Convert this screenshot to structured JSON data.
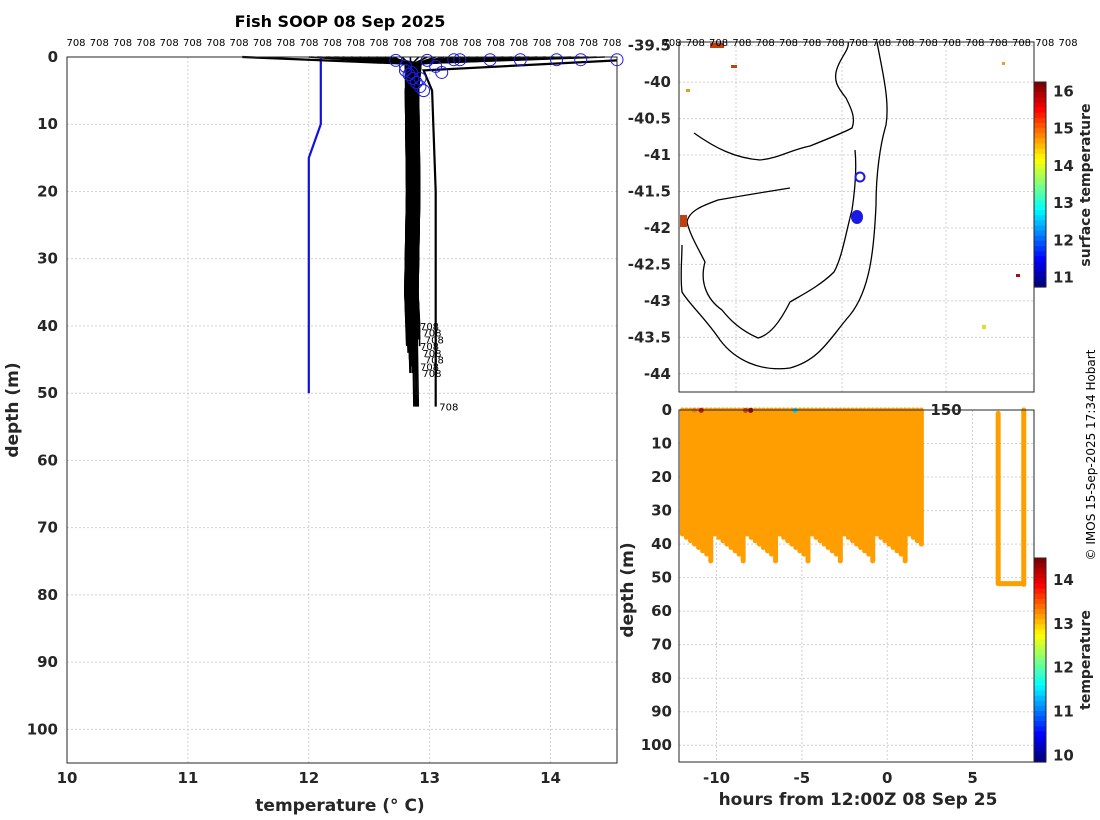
{
  "credit": "© IMOS 15-Sep-2025 17:34 Hobart",
  "chart_data": [
    {
      "type": "line",
      "title": "Fish SOOP 08 Sep 2025",
      "xlabel": "temperature (° C)",
      "ylabel": "depth (m)",
      "xlim": [
        10,
        14.55
      ],
      "ylim": [
        0,
        105
      ],
      "y_reversed": true,
      "grid": true,
      "xticks": [
        10,
        11,
        12,
        13,
        14
      ],
      "yticks": [
        0,
        10,
        20,
        30,
        40,
        50,
        60,
        70,
        80,
        90,
        100
      ],
      "top_label": "708",
      "series": [
        {
          "color": "#1010e0",
          "x": [
            12.1,
            12.1,
            12.1,
            12.0,
            12.0,
            12.0,
            12.0,
            12.0,
            12.0,
            12.0,
            12.0,
            12.0
          ],
          "y": [
            0,
            5,
            10,
            15,
            20,
            25,
            30,
            35,
            40,
            42,
            45,
            50
          ]
        },
        {
          "color": "#000000",
          "x": [
            11.45,
            12.8,
            12.81,
            12.82,
            12.83,
            12.84
          ],
          "y": [
            0,
            1,
            10,
            25,
            40,
            47
          ]
        },
        {
          "color": "#000000",
          "x": [
            14.55,
            12.95,
            13.02,
            13.05,
            13.05,
            13.05
          ],
          "y": [
            0.5,
            2,
            5,
            20,
            40,
            52
          ]
        }
      ],
      "profile_end_depths": [
        40,
        41,
        42,
        43,
        44,
        45,
        46,
        47,
        52
      ],
      "surface_marker_temps": [
        12.72,
        12.8,
        12.85,
        12.92,
        12.98,
        13.05,
        13.1,
        13.2,
        13.25,
        13.5,
        13.75,
        14.05,
        14.25,
        14.55
      ]
    },
    {
      "type": "scatter",
      "ylim": [
        -44.25,
        -39.45
      ],
      "yticks": [
        -39.5,
        -40,
        -40.5,
        -41,
        -41.5,
        -42,
        -42.5,
        -43,
        -43.5,
        -44
      ],
      "top_labels": [
        "708",
        "708",
        "708",
        "708",
        "708",
        "708",
        "708",
        "708",
        "708",
        "708",
        "708",
        "708",
        "708",
        "708",
        "708",
        "708",
        "708",
        "708"
      ],
      "bottom_partial_label": "150",
      "colorbar": {
        "label": "surface temperature",
        "range": [
          10.75,
          16.25
        ],
        "ticks": [
          11,
          12,
          13,
          14,
          15,
          16
        ]
      },
      "legend": "none",
      "grid": true
    },
    {
      "type": "scatter",
      "xlabel": "hours from 12:00Z 08 Sep 25",
      "ylabel": "depth (m)",
      "xlim": [
        -12.2,
        8.6
      ],
      "ylim": [
        0,
        105
      ],
      "y_reversed": true,
      "xticks": [
        -10,
        -5,
        0,
        5
      ],
      "yticks": [
        0,
        10,
        20,
        30,
        40,
        50,
        60,
        70,
        80,
        90,
        100
      ],
      "colorbar": {
        "label": "temperature",
        "range": [
          9.85,
          14.5
        ],
        "ticks": [
          10,
          11,
          12,
          13,
          14
        ]
      },
      "grid": true,
      "profiles": {
        "time_start": -12.0,
        "time_end": 2.0,
        "count": 60,
        "max_depths": [
          37,
          38,
          39,
          40,
          41,
          42,
          43,
          45
        ]
      },
      "late_profiles": [
        {
          "t": 6.5,
          "max_depth": 51.5
        },
        {
          "t": 8.0,
          "max_depth": 52
        }
      ]
    }
  ]
}
